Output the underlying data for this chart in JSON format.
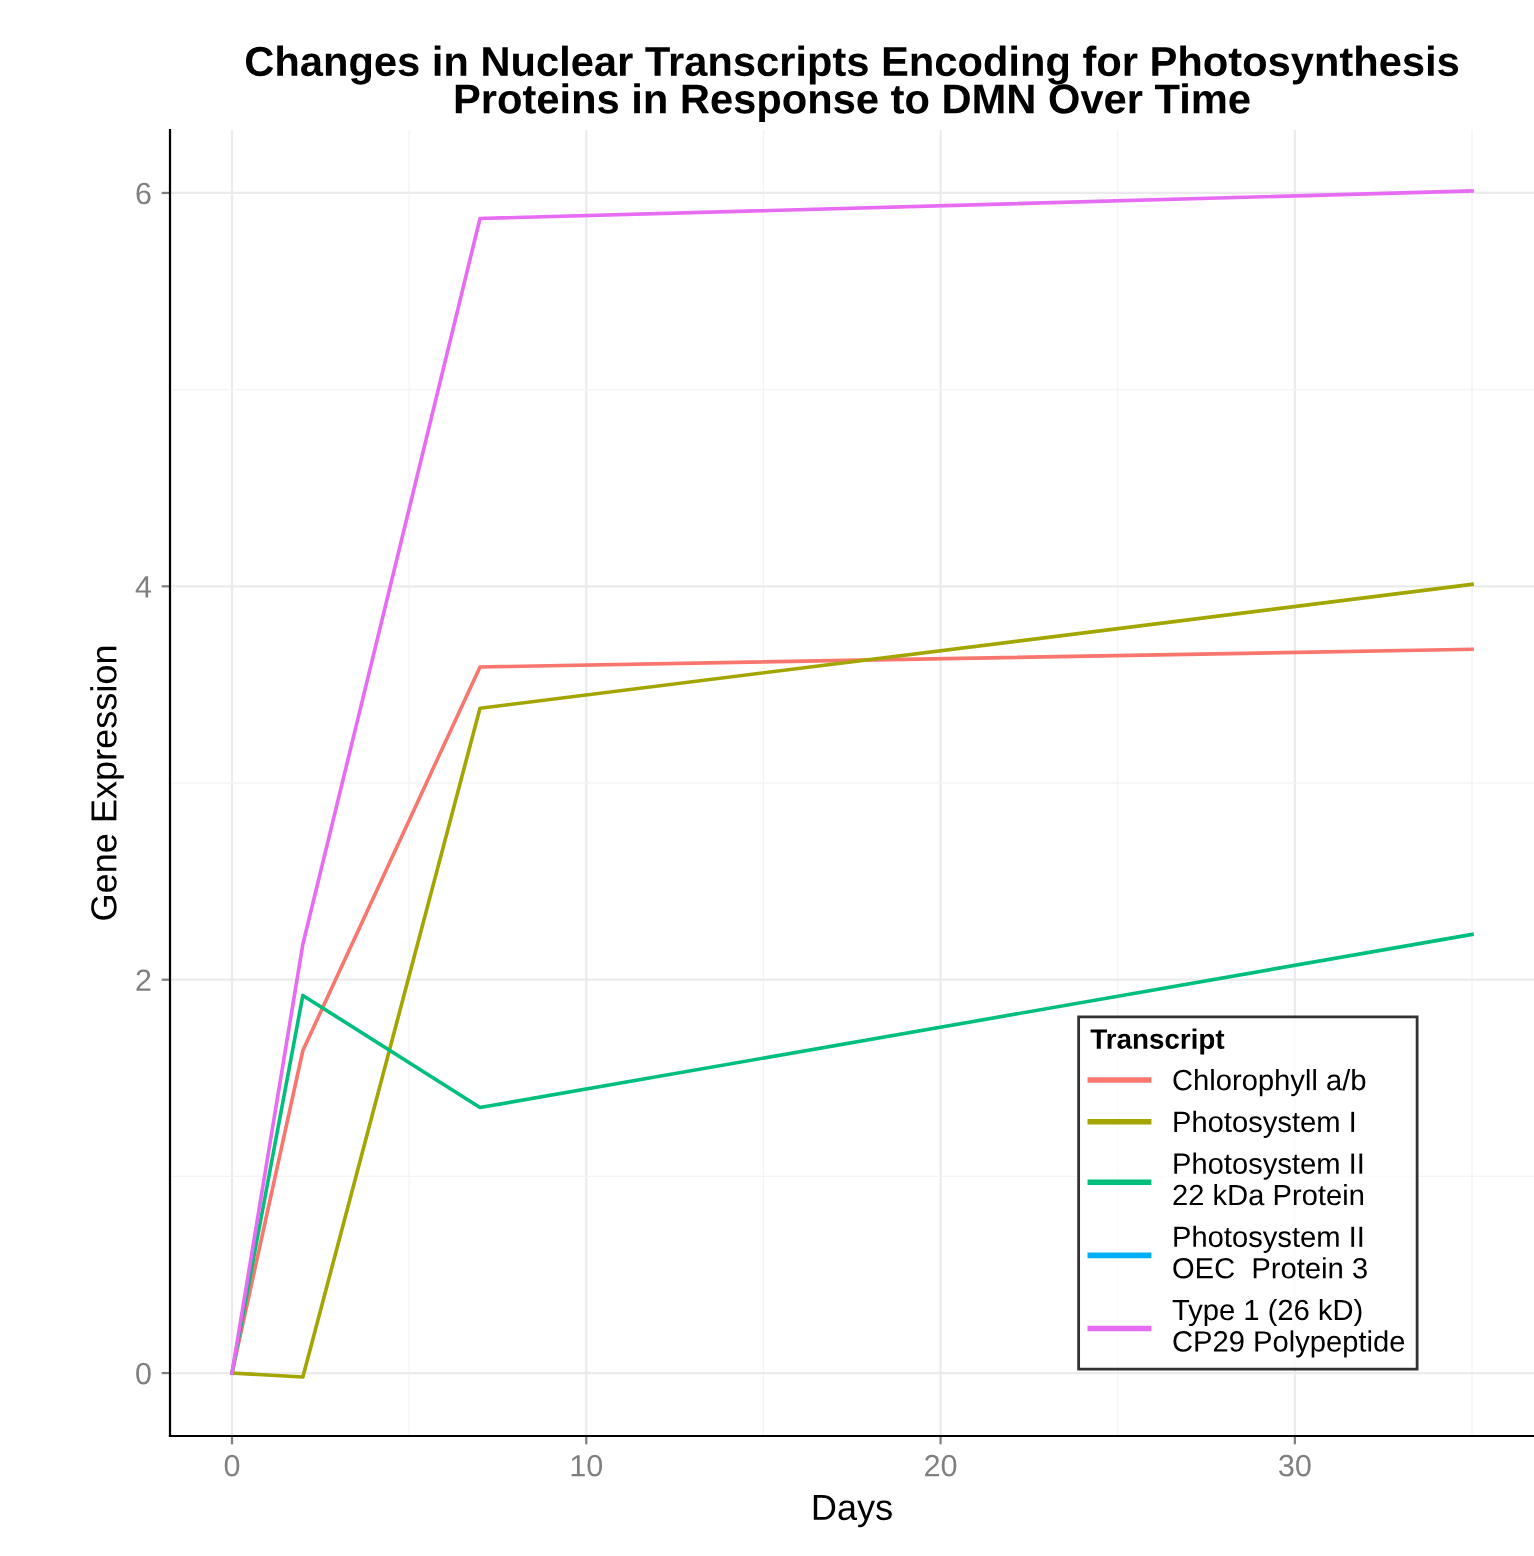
{
  "chart_data": {
    "type": "line",
    "title": "Changes in Nuclear Transcripts Encoding for Photosynthesis\nProteins in Response to DMN Over Time",
    "xlabel": "Days",
    "ylabel": "Gene Expression",
    "legend_title": "Transcript",
    "x": [
      0,
      2,
      7,
      35
    ],
    "series": [
      {
        "name": "Chlorophyll a/b",
        "color": "#f8766d",
        "values": [
          0,
          1.64,
          3.59,
          3.68
        ]
      },
      {
        "name": "Photosystem I",
        "color": "#a3a500",
        "values": [
          0,
          -0.02,
          3.38,
          4.01
        ]
      },
      {
        "name": "Photosystem II\n22 kDa Protein",
        "color": "#00bf7d",
        "values": [
          0,
          1.92,
          1.35,
          2.23
        ]
      },
      {
        "name": "Photosystem II\nOEC  Protein 3",
        "color": "#00b0f6",
        "values": [
          null,
          null,
          null,
          null
        ]
      },
      {
        "name": "Type 1 (26 kD)\nCP29 Polypeptide",
        "color": "#e76bf3",
        "values": [
          0,
          2.18,
          5.87,
          6.01
        ]
      }
    ],
    "xlim": [
      -1.75,
      36.75
    ],
    "xticks": [
      0,
      10,
      20,
      30
    ],
    "ylim": [
      -0.32,
      6.32
    ],
    "yticks": [
      0,
      2,
      4,
      6
    ],
    "grid": true,
    "legend": "bottom right",
    "line_style": "solid"
  }
}
